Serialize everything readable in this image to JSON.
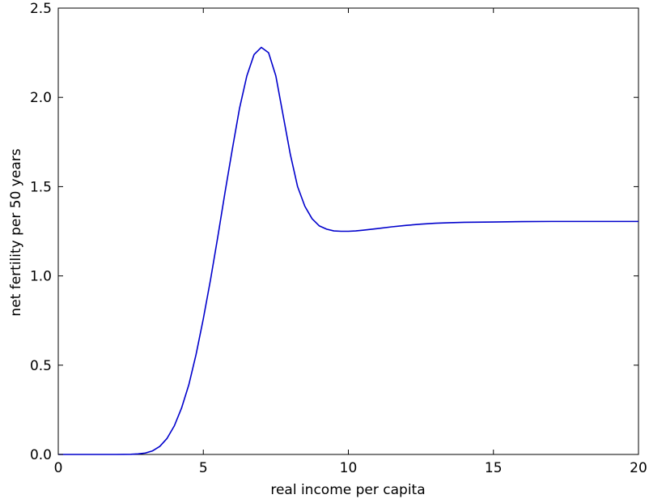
{
  "chart_data": {
    "type": "line",
    "title": "",
    "xlabel": "real income per capita",
    "ylabel": "net fertility per 50 years",
    "xlim": [
      0,
      20
    ],
    "ylim": [
      0,
      2.5
    ],
    "grid": false,
    "legend": "none",
    "x_ticks": [
      0,
      5,
      10,
      15,
      20
    ],
    "x_tick_labels": [
      "0",
      "5",
      "10",
      "15",
      "20"
    ],
    "y_ticks": [
      0,
      0.5,
      1.0,
      1.5,
      2.0,
      2.5
    ],
    "y_tick_labels": [
      "0.0",
      "0.5",
      "1.0",
      "1.5",
      "2.0",
      "2.5"
    ],
    "series": [
      {
        "color": "#0000cc",
        "x": [
          0,
          1,
          2,
          2.5,
          2.75,
          3.0,
          3.25,
          3.5,
          3.75,
          4.0,
          4.25,
          4.5,
          4.75,
          5.0,
          5.25,
          5.5,
          5.75,
          6.0,
          6.25,
          6.5,
          6.75,
          7.0,
          7.25,
          7.5,
          7.75,
          8.0,
          8.25,
          8.5,
          8.75,
          9.0,
          9.25,
          9.5,
          9.75,
          10.0,
          10.25,
          10.5,
          11.0,
          11.5,
          12.0,
          12.5,
          13.0,
          13.5,
          14.0,
          15.0,
          16.0,
          17.0,
          18.0,
          19.0,
          20.0
        ],
        "y": [
          0.0,
          0.0,
          0.0,
          0.001,
          0.003,
          0.008,
          0.02,
          0.045,
          0.09,
          0.16,
          0.26,
          0.39,
          0.56,
          0.76,
          0.98,
          1.22,
          1.47,
          1.71,
          1.94,
          2.12,
          2.24,
          2.28,
          2.25,
          2.12,
          1.9,
          1.68,
          1.5,
          1.39,
          1.32,
          1.28,
          1.262,
          1.252,
          1.25,
          1.25,
          1.252,
          1.256,
          1.265,
          1.275,
          1.283,
          1.29,
          1.295,
          1.298,
          1.3,
          1.302,
          1.304,
          1.305,
          1.305,
          1.305,
          1.305
        ]
      }
    ]
  }
}
